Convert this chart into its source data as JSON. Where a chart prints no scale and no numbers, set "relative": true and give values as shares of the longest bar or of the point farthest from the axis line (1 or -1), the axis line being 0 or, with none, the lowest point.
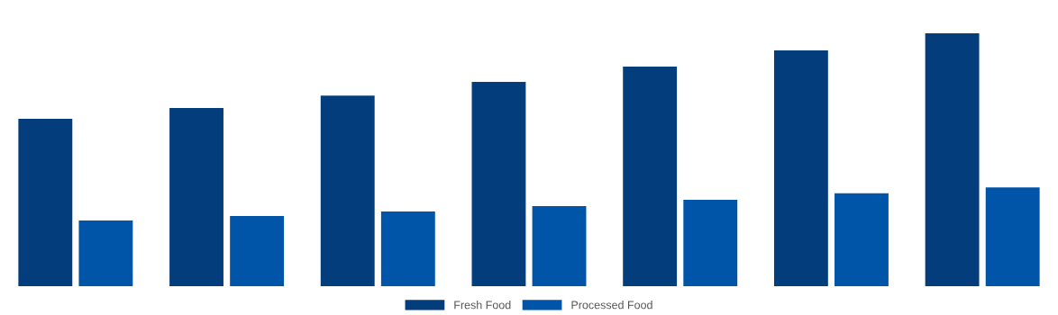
{
  "chart_data": {
    "type": "bar",
    "relative": true,
    "legend": "bottom",
    "categories": [
      null,
      null,
      null,
      null,
      null,
      null,
      null
    ],
    "series": [
      {
        "name": "Fresh Food",
        "color": "#033d7c",
        "values": [
          0.662,
          0.705,
          0.754,
          0.808,
          0.868,
          0.932,
          1
        ]
      },
      {
        "name": "Processed Food",
        "color": "#0055a8",
        "values": [
          0.26,
          0.278,
          0.295,
          0.317,
          0.342,
          0.367,
          0.391
        ]
      }
    ]
  }
}
